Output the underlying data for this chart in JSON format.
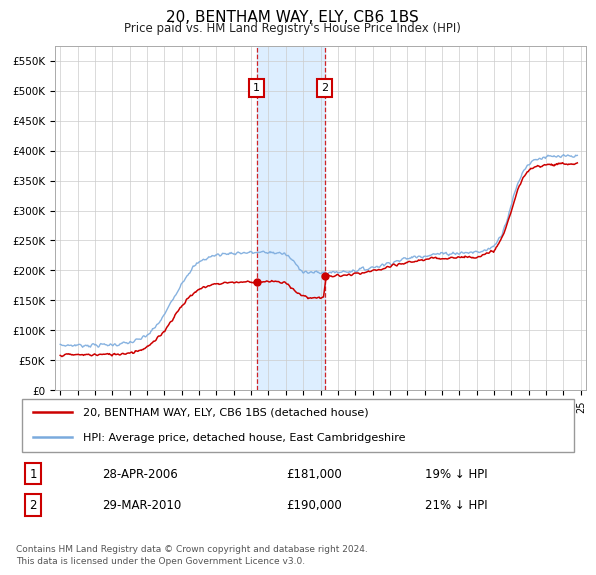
{
  "title": "20, BENTHAM WAY, ELY, CB6 1BS",
  "subtitle": "Price paid vs. HM Land Registry's House Price Index (HPI)",
  "ylim": [
    0,
    575000
  ],
  "yticks": [
    0,
    50000,
    100000,
    150000,
    200000,
    250000,
    300000,
    350000,
    400000,
    450000,
    500000,
    550000
  ],
  "ytick_labels": [
    "£0",
    "£50K",
    "£100K",
    "£150K",
    "£200K",
    "£250K",
    "£300K",
    "£350K",
    "£400K",
    "£450K",
    "£500K",
    "£550K"
  ],
  "sale1_date": 2006.32,
  "sale1_price": 181000,
  "sale2_date": 2010.24,
  "sale2_price": 190000,
  "sale1_label": "1",
  "sale2_label": "2",
  "legend_line1": "20, BENTHAM WAY, ELY, CB6 1BS (detached house)",
  "legend_line2": "HPI: Average price, detached house, East Cambridgeshire",
  "footnote": "Contains HM Land Registry data © Crown copyright and database right 2024.\nThis data is licensed under the Open Government Licence v3.0.",
  "hpi_color": "#7aaadd",
  "sale_color": "#cc0000",
  "shade_color": "#ddeeff",
  "background_color": "#ffffff",
  "grid_color": "#cccccc",
  "xlim_start": 1995,
  "xlim_end": 2025,
  "label1_date": "28-APR-2006",
  "label1_price": "£181,000",
  "label1_hpi": "19% ↓ HPI",
  "label2_date": "29-MAR-2010",
  "label2_price": "£190,000",
  "label2_hpi": "21% ↓ HPI"
}
